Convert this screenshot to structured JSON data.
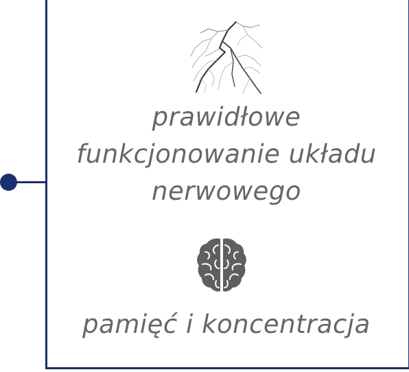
{
  "colors": {
    "frame": "#1a2f6e",
    "text": "#666666",
    "icon": "#5f5f5f"
  },
  "benefits": [
    {
      "icon": "nerve-icon",
      "lines": [
        "prawidłowe",
        "funkcjonowanie układu",
        "nerwowego"
      ]
    },
    {
      "icon": "brain-icon",
      "lines": [
        "pamięć i koncentracja"
      ]
    }
  ]
}
